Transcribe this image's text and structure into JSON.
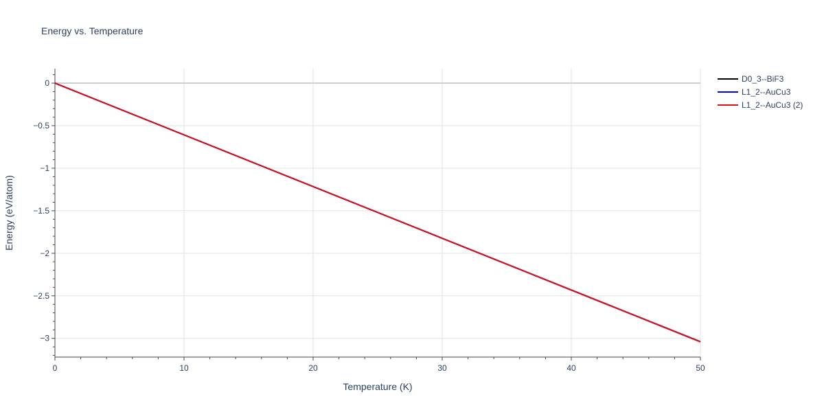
{
  "chart_data": {
    "type": "line",
    "title": "Energy vs. Temperature",
    "xlabel": "Temperature (K)",
    "ylabel": "Energy (eV/atom)",
    "xlim": [
      0,
      50
    ],
    "ylim": [
      -3.22,
      0.17
    ],
    "x_ticks": [
      0,
      10,
      20,
      30,
      40,
      50
    ],
    "x_tick_labels": [
      "0",
      "10",
      "20",
      "30",
      "40",
      "50"
    ],
    "y_ticks": [
      0,
      -0.5,
      -1,
      -1.5,
      -2,
      -2.5,
      -3
    ],
    "y_tick_labels": [
      "0",
      "−0.5",
      "−1",
      "−1.5",
      "−2",
      "−2.5",
      "−3"
    ],
    "grid": true,
    "legend_position": "top-right",
    "series": [
      {
        "name": "D0_3--BiF3",
        "color": "#000000",
        "x": [
          0,
          50
        ],
        "y": [
          0,
          -3.04
        ]
      },
      {
        "name": "L1_2--AuCu3",
        "color": "#0000ff",
        "x": [
          0,
          50
        ],
        "y": [
          0,
          -3.04
        ]
      },
      {
        "name": "L1_2--AuCu3 (2)",
        "color": "#dd1111",
        "x": [
          0,
          50
        ],
        "y": [
          0,
          -3.04
        ]
      }
    ]
  }
}
